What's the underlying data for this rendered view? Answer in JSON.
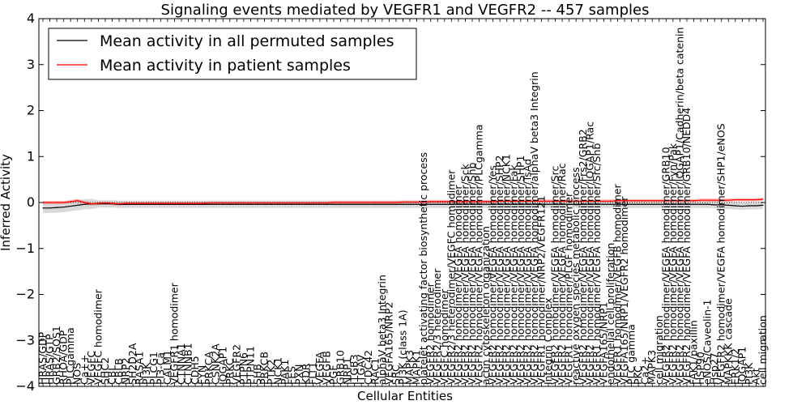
{
  "chart_data": {
    "type": "line",
    "title": "Signaling events mediated by VEGFR1 and VEGFR2 -- 457 samples",
    "xlabel": "Cellular Entities",
    "ylabel": "Inferred Activity",
    "ylim": [
      -4,
      4
    ],
    "yticks": [
      -4,
      -3,
      -2,
      -1,
      0,
      1,
      2,
      3,
      4
    ],
    "grid": false,
    "legend_position": "top-left",
    "categories": [
      "HRAS/GDP",
      "HRAS/GTP",
      "GRB2/SOS1",
      "RHOA/GDP",
      "PLCgamma",
      "NOS",
      "Ca++",
      "VEGFC",
      "VEGFC homodimer",
      "SHC2",
      "CBL",
      "CBLB",
      "NRP2",
      "SH2D2A",
      "RASA1",
      "PI3K",
      "PLCG1",
      "PI3-Ca",
      "CALM1",
      "VEGFR1 homodimer",
      "CTNNA1",
      "CTNNB1",
      "CDH5",
      "FYN",
      "PRKCA",
      "CSNK2A",
      "IQGAP1",
      "PRKC",
      "VEGFR2",
      "PTPN6",
      "PTPN11",
      "SHB",
      "PRKCB",
      "PTK2",
      "NCK1",
      "PAK1",
      "FES",
      "PXN",
      "KDR",
      "FLT1",
      "VEGFA",
      "VEGFB",
      "PGF",
      "GRB10",
      "NRP1",
      "ITGB3",
      "ITGAV",
      "CDC42",
      "RAC1",
      "alphaV beta3 Integrin",
      "VEGFA165/NRP2",
      "SRC",
      "PI3K (class 1A)",
      "MAPK3",
      "MAPK1",
      "platelet activating factor biosynthetic process",
      "VEGFR2 homodimer",
      "VEGFR2/3 heterodimer",
      "VEGFC homodimer",
      "VEGFR2/3 heterodimer/VEGFC homodimer",
      "VEGFR2 homodimer/VEGFA homodimer",
      "VEGFR2 homodimer/VEGFA homodimer/Sck",
      "VEGFR2 homodimer/VEGFA homodimer/Shb",
      "VEGFR2 homodimer/VEGFA homodimer/PLCgamma",
      "actin cytoskeleton organization",
      "VEGFR2 homodimer/VEGFA homodimer/Yes",
      "VEGFR2 homodimer/VEGFA homodimer/SHP2",
      "VEGFR2 homodimer/VEGFA homodimer/NCK1",
      "VEGFR2 homodimer/VEGFA homodimer/Fak",
      "VEGFR2 homodimer/VEGFA homodimer/SHP1",
      "VEGFR2 homodimer/VEGFA homodimer/TsAd",
      "VEGFR2 homodimer/VEGFA homodimer/alphaV beta3 Integrin",
      "VEGFR1 homodimer/NRP2/VEGFR121",
      "Integrin Complex",
      "VEGFR2 homodimer/VEGFA homodimer/Src",
      "VEGFR2 homodimer/VEGFA homodimer/Rac",
      "VEGFR1 homodimer/PLGF homodimer",
      "reactive oxygen species metabolic process",
      "VEGFR2 homodimer/VEGFA homodimer/Frs2/GRB2",
      "VEGFR2 homodimer/VEGFA homodimer/IQGAP1/Rac",
      "VEGFR1 homodimer/VEGFA homodimer/Src/Shb",
      "VEGFA165/NRP1",
      "endothelial cell proliferation",
      "VEGFR1 homodimer/VEGFB homodimer",
      "VEGFA165/NRP1/VEGFR2 homodimer",
      "PLC gamma",
      "PKC",
      "Ca2+",
      "MAPK3",
      "cell migration",
      "VEGFR2 homodimer/VEGFA homodimer/GRB10",
      "VEGFR2 homodimer/VEGFA homodimer/Fyn/Pak",
      "VEGFR2 homodimer/VEGFA homodimer/IQGAP1/Cadherin/beta catenin",
      "VEGFR2 homodimer/VEGFA homodimer/GRB10/NEDD4",
      "FAK1/paxillin",
      "HSP90",
      "eNOS/Caveolin-1",
      "Hsp27",
      "VEGFR2 homodimer/VEGFA homodimer/SHP1/eNOS",
      "MAPKKK cascade",
      "ERK1/2",
      "IQGAP1",
      "PI3K",
      "Akt",
      "cell migration"
    ],
    "series": [
      {
        "name": "Mean activity in all permuted samples",
        "color": "#000000",
        "values": [
          -0.12,
          -0.12,
          -0.11,
          -0.1,
          -0.08,
          -0.06,
          -0.04,
          -0.03,
          -0.03,
          -0.03,
          -0.03,
          -0.04,
          -0.04,
          -0.04,
          -0.04,
          -0.04,
          -0.04,
          -0.04,
          -0.04,
          -0.04,
          -0.04,
          -0.04,
          -0.04,
          -0.04,
          -0.04,
          -0.04,
          -0.04,
          -0.04,
          -0.04,
          -0.04,
          -0.04,
          -0.04,
          -0.04,
          -0.04,
          -0.04,
          -0.04,
          -0.04,
          -0.04,
          -0.04,
          -0.04,
          -0.04,
          -0.04,
          -0.04,
          -0.04,
          -0.04,
          -0.04,
          -0.04,
          -0.04,
          -0.04,
          -0.04,
          -0.04,
          -0.04,
          -0.04,
          -0.04,
          -0.04,
          -0.04,
          -0.04,
          -0.04,
          -0.04,
          -0.04,
          -0.04,
          -0.04,
          -0.04,
          -0.04,
          -0.04,
          -0.04,
          -0.04,
          -0.04,
          -0.04,
          -0.04,
          -0.04,
          -0.04,
          -0.04,
          -0.04,
          -0.04,
          -0.04,
          -0.04,
          -0.04,
          -0.04,
          -0.04,
          -0.04,
          -0.04,
          -0.04,
          -0.04,
          -0.04,
          -0.04,
          -0.04,
          -0.04,
          -0.04,
          -0.04,
          -0.04,
          -0.04,
          -0.04,
          -0.04,
          -0.04,
          -0.04,
          -0.04,
          -0.05,
          -0.05,
          -0.06,
          -0.07,
          -0.08,
          -0.07,
          -0.07,
          -0.06
        ]
      },
      {
        "name": "Mean activity in patient samples",
        "color": "#ff0000",
        "values": [
          0.0,
          0.0,
          0.0,
          0.0,
          0.02,
          0.04,
          0.0,
          -0.03,
          -0.02,
          -0.01,
          -0.02,
          -0.03,
          -0.02,
          -0.02,
          -0.02,
          -0.02,
          -0.02,
          -0.02,
          -0.02,
          -0.02,
          -0.02,
          -0.02,
          -0.02,
          -0.02,
          -0.01,
          -0.01,
          -0.01,
          -0.01,
          -0.01,
          -0.01,
          -0.01,
          -0.01,
          -0.01,
          -0.01,
          -0.01,
          -0.01,
          -0.01,
          -0.01,
          -0.01,
          -0.01,
          -0.01,
          -0.01,
          0.0,
          0.0,
          0.0,
          0.0,
          0.0,
          0.0,
          0.0,
          0.0,
          0.0,
          0.0,
          0.01,
          0.01,
          0.01,
          0.01,
          0.02,
          0.02,
          0.02,
          0.02,
          0.02,
          0.02,
          0.02,
          0.02,
          0.02,
          0.02,
          0.03,
          0.03,
          0.03,
          0.03,
          0.03,
          0.03,
          0.03,
          0.03,
          0.03,
          0.03,
          0.03,
          0.03,
          0.03,
          0.03,
          0.03,
          0.03,
          0.03,
          0.04,
          0.04,
          0.04,
          0.04,
          0.04,
          0.04,
          0.04,
          0.04,
          0.04,
          0.04,
          0.04,
          0.04,
          0.05,
          0.05,
          0.05,
          0.05,
          0.05,
          0.06,
          0.06,
          0.06,
          0.06,
          0.07
        ]
      }
    ]
  }
}
